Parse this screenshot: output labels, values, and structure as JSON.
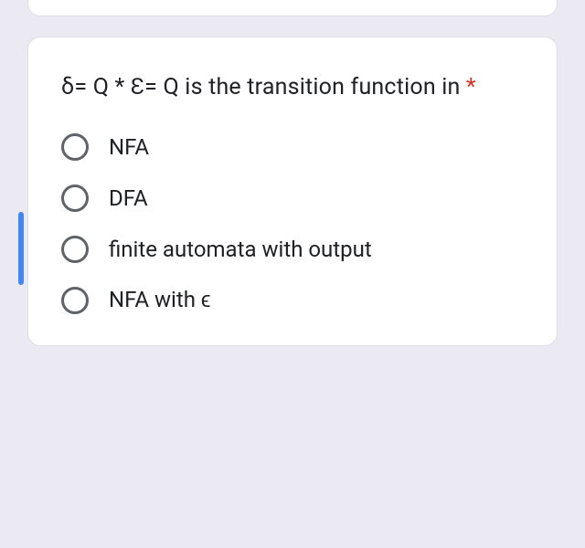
{
  "question": {
    "text": "δ= Q * Ɛ= Q is the transition function in ",
    "required_marker": "*"
  },
  "options": [
    {
      "label": "NFA"
    },
    {
      "label": "DFA"
    },
    {
      "label": "finite automata with output"
    },
    {
      "label": "NFA with ϵ"
    }
  ],
  "colors": {
    "background": "#ebe9f2",
    "card": "#ffffff",
    "text": "#202124",
    "radio_border": "#5f6368",
    "required": "#d93025",
    "accent": "#4285f4"
  }
}
